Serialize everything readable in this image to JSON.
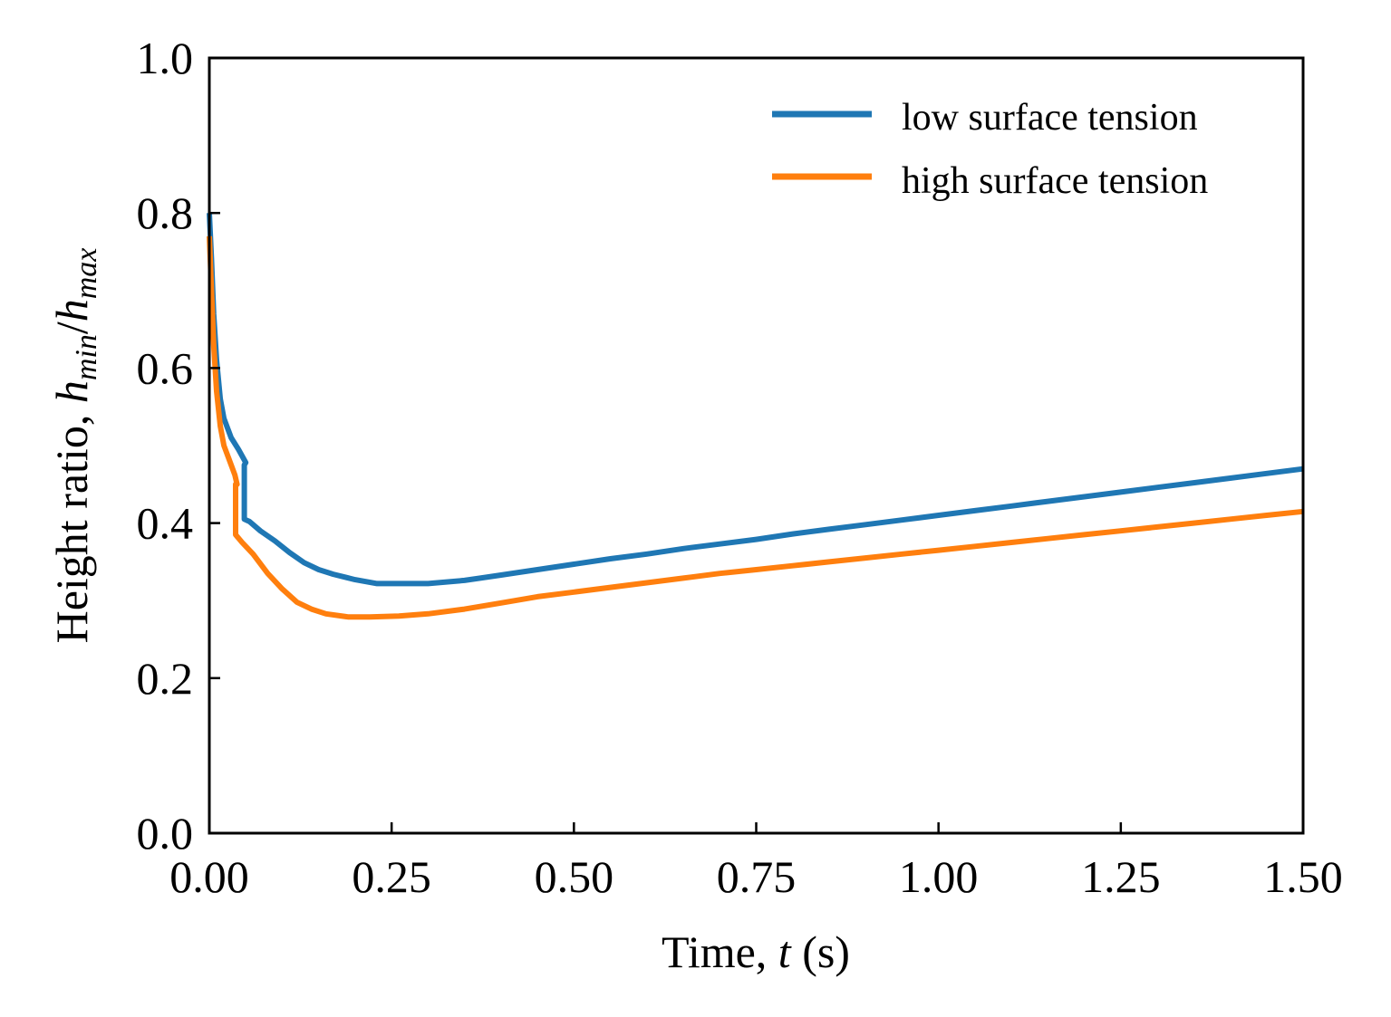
{
  "chart_data": {
    "type": "line",
    "xlabel": {
      "pre": "Time, ",
      "var": "t",
      "post": " (s)"
    },
    "ylabel": {
      "pre": "Height ratio, ",
      "h1": "h",
      "sub1": "min",
      "slash": "/",
      "h2": "h",
      "sub2": "max"
    },
    "xlim": [
      0,
      1.5
    ],
    "ylim": [
      0,
      1.0
    ],
    "x_ticks": [
      "0.00",
      "0.25",
      "0.50",
      "0.75",
      "1.00",
      "1.25",
      "1.50"
    ],
    "y_ticks": [
      "0.0",
      "0.2",
      "0.4",
      "0.6",
      "0.8",
      "1.0"
    ],
    "grid": false,
    "legend_position": "top-right",
    "series": [
      {
        "name": "low surface tension",
        "color": "#1f77b4",
        "points": [
          [
            0.0,
            0.8
          ],
          [
            0.003,
            0.74
          ],
          [
            0.006,
            0.67
          ],
          [
            0.01,
            0.61
          ],
          [
            0.015,
            0.56
          ],
          [
            0.02,
            0.535
          ],
          [
            0.03,
            0.51
          ],
          [
            0.04,
            0.495
          ],
          [
            0.05,
            0.478
          ],
          [
            0.048,
            0.475
          ],
          [
            0.048,
            0.405
          ],
          [
            0.055,
            0.402
          ],
          [
            0.07,
            0.39
          ],
          [
            0.09,
            0.377
          ],
          [
            0.11,
            0.362
          ],
          [
            0.13,
            0.349
          ],
          [
            0.15,
            0.34
          ],
          [
            0.17,
            0.334
          ],
          [
            0.2,
            0.327
          ],
          [
            0.23,
            0.322
          ],
          [
            0.26,
            0.322
          ],
          [
            0.3,
            0.322
          ],
          [
            0.35,
            0.326
          ],
          [
            0.4,
            0.333
          ],
          [
            0.45,
            0.34
          ],
          [
            0.5,
            0.347
          ],
          [
            0.55,
            0.354
          ],
          [
            0.6,
            0.36
          ],
          [
            0.65,
            0.367
          ],
          [
            0.7,
            0.373
          ],
          [
            0.75,
            0.379
          ],
          [
            0.8,
            0.386
          ],
          [
            0.85,
            0.392
          ],
          [
            0.9,
            0.398
          ],
          [
            0.95,
            0.404
          ],
          [
            1.0,
            0.41
          ],
          [
            1.05,
            0.416
          ],
          [
            1.1,
            0.422
          ],
          [
            1.15,
            0.428
          ],
          [
            1.2,
            0.434
          ],
          [
            1.25,
            0.44
          ],
          [
            1.3,
            0.446
          ],
          [
            1.35,
            0.452
          ],
          [
            1.4,
            0.458
          ],
          [
            1.45,
            0.464
          ],
          [
            1.5,
            0.47
          ]
        ]
      },
      {
        "name": "high surface tension",
        "color": "#ff7f0e",
        "points": [
          [
            0.0,
            0.77
          ],
          [
            0.003,
            0.7
          ],
          [
            0.006,
            0.63
          ],
          [
            0.01,
            0.57
          ],
          [
            0.015,
            0.525
          ],
          [
            0.02,
            0.5
          ],
          [
            0.03,
            0.475
          ],
          [
            0.035,
            0.462
          ],
          [
            0.038,
            0.45
          ],
          [
            0.036,
            0.45
          ],
          [
            0.036,
            0.385
          ],
          [
            0.045,
            0.375
          ],
          [
            0.06,
            0.36
          ],
          [
            0.08,
            0.335
          ],
          [
            0.1,
            0.315
          ],
          [
            0.12,
            0.298
          ],
          [
            0.14,
            0.289
          ],
          [
            0.16,
            0.283
          ],
          [
            0.19,
            0.279
          ],
          [
            0.22,
            0.279
          ],
          [
            0.26,
            0.28
          ],
          [
            0.3,
            0.283
          ],
          [
            0.35,
            0.289
          ],
          [
            0.4,
            0.297
          ],
          [
            0.45,
            0.305
          ],
          [
            0.5,
            0.311
          ],
          [
            0.55,
            0.317
          ],
          [
            0.6,
            0.323
          ],
          [
            0.65,
            0.329
          ],
          [
            0.7,
            0.335
          ],
          [
            0.75,
            0.34
          ],
          [
            0.8,
            0.345
          ],
          [
            0.85,
            0.35
          ],
          [
            0.9,
            0.355
          ],
          [
            0.95,
            0.36
          ],
          [
            1.0,
            0.365
          ],
          [
            1.05,
            0.37
          ],
          [
            1.1,
            0.375
          ],
          [
            1.15,
            0.38
          ],
          [
            1.2,
            0.385
          ],
          [
            1.25,
            0.39
          ],
          [
            1.3,
            0.395
          ],
          [
            1.35,
            0.4
          ],
          [
            1.4,
            0.405
          ],
          [
            1.45,
            0.41
          ],
          [
            1.5,
            0.415
          ]
        ]
      }
    ]
  }
}
